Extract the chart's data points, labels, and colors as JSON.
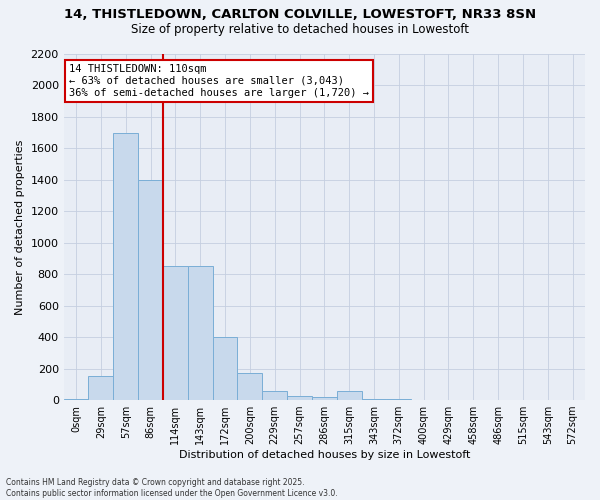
{
  "title_line1": "14, THISTLEDOWN, CARLTON COLVILLE, LOWESTOFT, NR33 8SN",
  "title_line2": "Size of property relative to detached houses in Lowestoft",
  "xlabel": "Distribution of detached houses by size in Lowestoft",
  "ylabel": "Number of detached properties",
  "bar_color": "#c8d9ec",
  "bar_edge_color": "#7aaed6",
  "categories": [
    "0sqm",
    "29sqm",
    "57sqm",
    "86sqm",
    "114sqm",
    "143sqm",
    "172sqm",
    "200sqm",
    "229sqm",
    "257sqm",
    "286sqm",
    "315sqm",
    "343sqm",
    "372sqm",
    "400sqm",
    "429sqm",
    "458sqm",
    "486sqm",
    "515sqm",
    "543sqm",
    "572sqm"
  ],
  "values": [
    10,
    150,
    1700,
    1400,
    850,
    850,
    400,
    175,
    60,
    25,
    20,
    60,
    10,
    10,
    0,
    0,
    0,
    0,
    0,
    0,
    0
  ],
  "vline_x": 3.5,
  "annotation_line1": "14 THISTLEDOWN: 110sqm",
  "annotation_line2": "← 63% of detached houses are smaller (3,043)",
  "annotation_line3": "36% of semi-detached houses are larger (1,720) →",
  "vline_color": "#cc0000",
  "annotation_box_color": "#cc0000",
  "ylim": [
    0,
    2200
  ],
  "yticks": [
    0,
    200,
    400,
    600,
    800,
    1000,
    1200,
    1400,
    1600,
    1800,
    2000,
    2200
  ],
  "footer_line1": "Contains HM Land Registry data © Crown copyright and database right 2025.",
  "footer_line2": "Contains public sector information licensed under the Open Government Licence v3.0.",
  "bg_color": "#eef2f8",
  "plot_bg_color": "#e8edf5",
  "grid_color": "#c5cfe0"
}
